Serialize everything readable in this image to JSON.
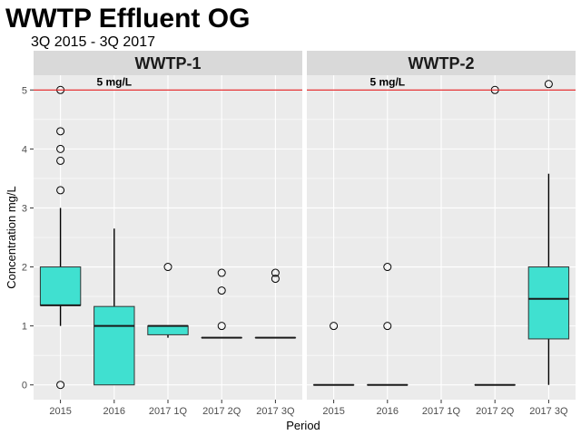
{
  "chart_data": {
    "type": "boxplot",
    "title": "WWTP Effluent OG",
    "subtitle": "3Q 2015 - 3Q 2017",
    "xlabel": "Period",
    "ylabel": "Concentration mg/L",
    "categories": [
      "2015",
      "2016",
      "2017 1Q",
      "2017 2Q",
      "2017 3Q"
    ],
    "yticks": [
      0,
      1,
      2,
      3,
      4,
      5
    ],
    "ylim": [
      -0.25,
      5.25
    ],
    "grid": true,
    "reference_line": {
      "value": 5,
      "label": "5 mg/L",
      "color": "#e31a1c"
    },
    "colors": {
      "box_fill": "#40e0d0",
      "panel_bg": "#ebebeb",
      "strip_bg": "#d9d9d9",
      "grid": "#ffffff"
    },
    "panels": [
      {
        "name": "WWTP-1",
        "boxes": [
          {
            "category": "2015",
            "q1": 1.35,
            "median": 1.35,
            "q3": 2.0,
            "whisker_low": 1.0,
            "whisker_high": 3.0,
            "outliers": [
              5.0,
              4.3,
              4.0,
              3.8,
              3.3,
              0.0
            ]
          },
          {
            "category": "2016",
            "q1": 0.0,
            "median": 1.0,
            "q3": 1.33,
            "whisker_low": 0.0,
            "whisker_high": 2.65,
            "outliers": []
          },
          {
            "category": "2017 1Q",
            "q1": 0.85,
            "median": 1.0,
            "q3": 1.0,
            "whisker_low": 0.8,
            "whisker_high": 1.0,
            "outliers": [
              2.0
            ]
          },
          {
            "category": "2017 2Q",
            "q1": 0.8,
            "median": 0.8,
            "q3": 0.8,
            "whisker_low": 0.8,
            "whisker_high": 0.8,
            "outliers": [
              1.9,
              1.6,
              1.0
            ]
          },
          {
            "category": "2017 3Q",
            "q1": 0.8,
            "median": 0.8,
            "q3": 0.8,
            "whisker_low": 0.8,
            "whisker_high": 0.8,
            "outliers": [
              1.9,
              1.8
            ]
          }
        ]
      },
      {
        "name": "WWTP-2",
        "boxes": [
          {
            "category": "2015",
            "q1": 0.0,
            "median": 0.0,
            "q3": 0.0,
            "whisker_low": 0.0,
            "whisker_high": 0.0,
            "outliers": [
              1.0
            ]
          },
          {
            "category": "2016",
            "q1": 0.0,
            "median": 0.0,
            "q3": 0.0,
            "whisker_low": 0.0,
            "whisker_high": 0.0,
            "outliers": [
              2.0,
              1.0
            ]
          },
          {
            "category": "2017 2Q",
            "q1": 0.0,
            "median": 0.0,
            "q3": 0.0,
            "whisker_low": 0.0,
            "whisker_high": 0.0,
            "outliers": [
              5.0
            ]
          },
          {
            "category": "2017 3Q",
            "q1": 0.78,
            "median": 1.46,
            "q3": 2.0,
            "whisker_low": 0.0,
            "whisker_high": 3.58,
            "outliers": [
              5.1
            ]
          }
        ]
      }
    ]
  }
}
